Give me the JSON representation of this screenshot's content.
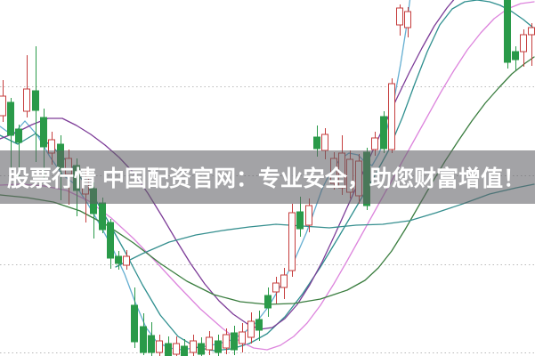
{
  "banner": {
    "text": "股票行情 中国配资官网：专业安全，助您财富增值！",
    "bg": "rgba(96,96,101,0.58)",
    "text_color": "#ffffff"
  },
  "chart_data": {
    "type": "candlestick",
    "title": "",
    "xlabel": "",
    "ylabel": "",
    "note": "Cropped stock K-line chart; no axis tick labels visible in screenshot. Values are screen-pixel coordinates (y increases downward). Candles: [x_center, open_y, close_y, high_y, low_y, dir] dir u=up(red hollow), d=down(green filled).",
    "grid": {
      "ys": [
        97,
        197,
        297,
        396
      ],
      "color": "#b9b9b9",
      "style": "dotted"
    },
    "candle_style": {
      "body_width": 7,
      "up_stroke": "#c53d3d",
      "up_fill": "#ffffff",
      "down_color": "#2a9a49"
    },
    "candles": [
      [
        3,
        130,
        108,
        90,
        137,
        "u"
      ],
      [
        12,
        115,
        152,
        110,
        190,
        "d"
      ],
      [
        21,
        145,
        160,
        140,
        198,
        "d"
      ],
      [
        30,
        125,
        100,
        62,
        132,
        "u"
      ],
      [
        40,
        102,
        124,
        52,
        182,
        "d"
      ],
      [
        49,
        132,
        165,
        122,
        200,
        "d"
      ],
      [
        58,
        172,
        157,
        148,
        185,
        "u"
      ],
      [
        68,
        162,
        190,
        152,
        225,
        "d"
      ],
      [
        77,
        196,
        178,
        168,
        230,
        "u"
      ],
      [
        86,
        186,
        214,
        178,
        243,
        "d"
      ],
      [
        96,
        218,
        200,
        190,
        250,
        "u"
      ],
      [
        105,
        212,
        240,
        205,
        268,
        "d"
      ],
      [
        115,
        228,
        258,
        222,
        262,
        "d"
      ],
      [
        124,
        250,
        290,
        246,
        302,
        "d"
      ],
      [
        133,
        288,
        296,
        282,
        303,
        "d"
      ],
      [
        142,
        288,
        298,
        281,
        303,
        "u"
      ],
      [
        151,
        343,
        384,
        323,
        391,
        "d"
      ],
      [
        161,
        367,
        396,
        352,
        399,
        "d"
      ],
      [
        170,
        377,
        396,
        362,
        400,
        "d"
      ],
      [
        179,
        396,
        383,
        376,
        400,
        "u"
      ],
      [
        189,
        386,
        400,
        378,
        400,
        "d"
      ],
      [
        198,
        398,
        386,
        378,
        400,
        "u"
      ],
      [
        207,
        389,
        400,
        381,
        400,
        "d"
      ],
      [
        217,
        396,
        383,
        376,
        400,
        "u"
      ],
      [
        226,
        386,
        398,
        379,
        400,
        "d"
      ],
      [
        235,
        393,
        379,
        372,
        399,
        "u"
      ],
      [
        245,
        383,
        396,
        376,
        400,
        "d"
      ],
      [
        254,
        391,
        376,
        369,
        398,
        "u"
      ],
      [
        263,
        374,
        393,
        366,
        399,
        "d"
      ],
      [
        272,
        386,
        373,
        363,
        396,
        "u"
      ],
      [
        282,
        379,
        361,
        351,
        386,
        "u"
      ],
      [
        291,
        359,
        371,
        349,
        383,
        "d"
      ],
      [
        301,
        332,
        346,
        323,
        356,
        "d"
      ],
      [
        310,
        328,
        318,
        311,
        341,
        "u"
      ],
      [
        319,
        323,
        309,
        301,
        336,
        "u"
      ],
      [
        328,
        304,
        239,
        229,
        311,
        "u"
      ],
      [
        337,
        238,
        257,
        221,
        266,
        "d"
      ],
      [
        347,
        253,
        231,
        223,
        261,
        "u"
      ],
      [
        356,
        154,
        167,
        141,
        176,
        "d"
      ],
      [
        365,
        169,
        151,
        144,
        179,
        "u"
      ],
      [
        375,
        206,
        178,
        171,
        213,
        "u"
      ],
      [
        384,
        211,
        172,
        152,
        219,
        "u"
      ],
      [
        393,
        216,
        179,
        169,
        223,
        "u"
      ],
      [
        403,
        220,
        181,
        173,
        229,
        "u"
      ],
      [
        412,
        171,
        231,
        166,
        236,
        "d"
      ],
      [
        421,
        168,
        155,
        148,
        175,
        "u"
      ],
      [
        431,
        131,
        167,
        125,
        172,
        "d"
      ],
      [
        440,
        168,
        94,
        88,
        172,
        "u"
      ],
      [
        449,
        28,
        9,
        5,
        40,
        "u"
      ],
      [
        458,
        31,
        13,
        8,
        42,
        "u"
      ],
      [
        570,
        -5,
        70,
        -5,
        77,
        "d"
      ],
      [
        579,
        58,
        67,
        52,
        79,
        "d"
      ],
      [
        588,
        58,
        39,
        33,
        75,
        "u"
      ],
      [
        597,
        39,
        31,
        26,
        74,
        "u"
      ]
    ],
    "ma_lines": [
      {
        "name": "ma5",
        "color": "#64aed1",
        "width": 1.3,
        "points": [
          [
            0,
            142
          ],
          [
            14,
            152
          ],
          [
            28,
            136
          ],
          [
            42,
            152
          ],
          [
            56,
            176
          ],
          [
            70,
            196
          ],
          [
            84,
            207
          ],
          [
            98,
            228
          ],
          [
            112,
            252
          ],
          [
            126,
            278
          ],
          [
            140,
            308
          ],
          [
            152,
            340
          ],
          [
            164,
            368
          ],
          [
            176,
            384
          ],
          [
            190,
            391
          ],
          [
            204,
            393
          ],
          [
            218,
            391
          ],
          [
            232,
            389
          ],
          [
            246,
            386
          ],
          [
            260,
            382
          ],
          [
            274,
            374
          ],
          [
            288,
            362
          ],
          [
            302,
            344
          ],
          [
            316,
            320
          ],
          [
            330,
            294
          ],
          [
            344,
            262
          ],
          [
            352,
            240
          ],
          [
            362,
            212
          ],
          [
            372,
            192
          ],
          [
            382,
            179
          ],
          [
            392,
            172
          ],
          [
            402,
            174
          ],
          [
            410,
            182
          ],
          [
            418,
            186
          ],
          [
            426,
            172
          ],
          [
            434,
            148
          ],
          [
            442,
            116
          ],
          [
            450,
            72
          ],
          [
            456,
            34
          ],
          [
            461,
            -4
          ]
        ]
      },
      {
        "name": "ma10",
        "color": "#2f8f8f",
        "width": 1.3,
        "points": [
          [
            0,
            152
          ],
          [
            20,
            162
          ],
          [
            40,
            150
          ],
          [
            60,
            166
          ],
          [
            80,
            186
          ],
          [
            100,
            212
          ],
          [
            120,
            246
          ],
          [
            140,
            282
          ],
          [
            160,
            320
          ],
          [
            180,
            354
          ],
          [
            200,
            378
          ],
          [
            220,
            390
          ],
          [
            240,
            394
          ],
          [
            260,
            392
          ],
          [
            280,
            386
          ],
          [
            300,
            375
          ],
          [
            320,
            356
          ],
          [
            340,
            330
          ],
          [
            360,
            300
          ],
          [
            380,
            267
          ],
          [
            400,
            233
          ],
          [
            420,
            199
          ],
          [
            436,
            170
          ],
          [
            452,
            132
          ],
          [
            466,
            94
          ],
          [
            480,
            58
          ],
          [
            494,
            28
          ],
          [
            508,
            10
          ],
          [
            522,
            2
          ],
          [
            536,
            0
          ],
          [
            550,
            2
          ],
          [
            562,
            6
          ],
          [
            575,
            13
          ],
          [
            588,
            22
          ],
          [
            600,
            32
          ]
        ]
      },
      {
        "name": "ma20",
        "color": "#dd85dd",
        "width": 1.3,
        "points": [
          [
            0,
            208
          ],
          [
            25,
            207
          ],
          [
            50,
            209
          ],
          [
            75,
            214
          ],
          [
            100,
            226
          ],
          [
            125,
            245
          ],
          [
            150,
            268
          ],
          [
            175,
            294
          ],
          [
            200,
            321
          ],
          [
            225,
            347
          ],
          [
            250,
            369
          ],
          [
            270,
            384
          ],
          [
            285,
            391
          ],
          [
            300,
            393
          ],
          [
            315,
            388
          ],
          [
            330,
            378
          ],
          [
            345,
            363
          ],
          [
            360,
            343
          ],
          [
            375,
            319
          ],
          [
            390,
            293
          ],
          [
            405,
            266
          ],
          [
            420,
            239
          ],
          [
            435,
            212
          ],
          [
            450,
            185
          ],
          [
            465,
            158
          ],
          [
            480,
            131
          ],
          [
            495,
            104
          ],
          [
            510,
            79
          ],
          [
            525,
            56
          ],
          [
            540,
            37
          ],
          [
            555,
            21
          ],
          [
            570,
            10
          ],
          [
            585,
            4
          ],
          [
            600,
            2
          ]
        ]
      },
      {
        "name": "ma30",
        "color": "#7d3c98",
        "width": 1.3,
        "points": [
          [
            0,
            156
          ],
          [
            18,
            149
          ],
          [
            36,
            140
          ],
          [
            54,
            133
          ],
          [
            70,
            133
          ],
          [
            86,
            141
          ],
          [
            102,
            151
          ],
          [
            118,
            163
          ],
          [
            134,
            177
          ],
          [
            150,
            194
          ],
          [
            166,
            217
          ],
          [
            182,
            243
          ],
          [
            198,
            270
          ],
          [
            214,
            296
          ],
          [
            230,
            319
          ],
          [
            246,
            338
          ],
          [
            262,
            353
          ],
          [
            278,
            364
          ],
          [
            292,
            370
          ],
          [
            306,
            368
          ],
          [
            320,
            358
          ],
          [
            334,
            342
          ],
          [
            348,
            320
          ],
          [
            362,
            294
          ],
          [
            376,
            264
          ],
          [
            390,
            233
          ],
          [
            404,
            202
          ],
          [
            418,
            171
          ],
          [
            432,
            140
          ],
          [
            446,
            110
          ],
          [
            460,
            81
          ],
          [
            474,
            54
          ],
          [
            488,
            29
          ],
          [
            502,
            9
          ],
          [
            512,
            -3
          ]
        ]
      },
      {
        "name": "ma60",
        "color": "#3a7d3f",
        "width": 1.3,
        "points": [
          [
            0,
            219
          ],
          [
            30,
            222
          ],
          [
            60,
            227
          ],
          [
            90,
            237
          ],
          [
            120,
            253
          ],
          [
            150,
            273
          ],
          [
            180,
            296
          ],
          [
            210,
            316
          ],
          [
            240,
            331
          ],
          [
            270,
            339
          ],
          [
            300,
            342
          ],
          [
            330,
            341
          ],
          [
            360,
            336
          ],
          [
            390,
            326
          ],
          [
            410,
            315
          ],
          [
            425,
            301
          ],
          [
            440,
            282
          ],
          [
            455,
            258
          ],
          [
            470,
            232
          ],
          [
            485,
            206
          ],
          [
            500,
            181
          ],
          [
            515,
            158
          ],
          [
            530,
            136
          ],
          [
            545,
            116
          ],
          [
            560,
            99
          ],
          [
            575,
            83
          ],
          [
            590,
            71
          ],
          [
            600,
            64
          ]
        ]
      },
      {
        "name": "ma120",
        "color": "#368f8f",
        "width": 1.3,
        "points": [
          [
            130,
            300
          ],
          [
            160,
            285
          ],
          [
            190,
            272
          ],
          [
            220,
            264
          ],
          [
            250,
            259
          ],
          [
            280,
            255
          ],
          [
            310,
            252
          ],
          [
            340,
            254
          ],
          [
            370,
            256
          ],
          [
            400,
            253
          ],
          [
            430,
            252
          ],
          [
            460,
            248
          ],
          [
            490,
            239
          ],
          [
            520,
            229
          ],
          [
            550,
            218
          ],
          [
            580,
            211
          ],
          [
            600,
            207
          ]
        ]
      }
    ]
  }
}
